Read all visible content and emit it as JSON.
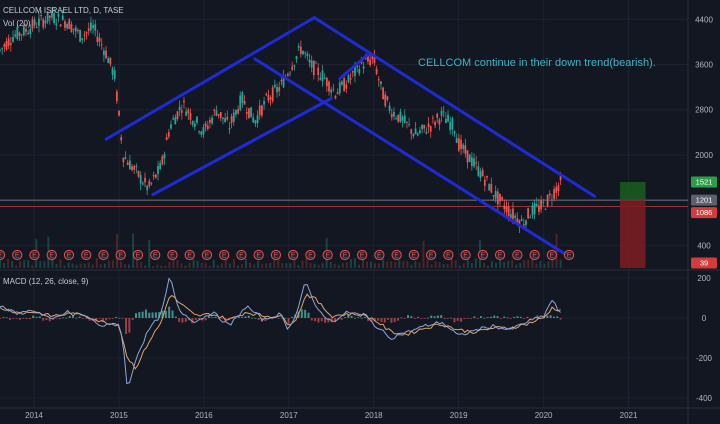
{
  "header": {
    "symbol_line": "CELLCOM ISRAEL LTD, D, TASE",
    "volume_label": "Vol (20)",
    "macd_label": "MACD (12, 26, close, 9)"
  },
  "annotation": "CELLCOM continue in their down trend(bearish).",
  "colors": {
    "background": "#131722",
    "up": "#26a69a",
    "down": "#ef5350",
    "channel": "#1f2bd6",
    "annotation": "#3fb3c6",
    "macd_line": "#8fa6d8",
    "signal_line": "#e0a46c"
  },
  "chart_data": [
    {
      "type": "line",
      "name": "price",
      "x_ticks": [
        "2014",
        "2015",
        "2016",
        "2017",
        "2018",
        "2019",
        "2020",
        "2021"
      ],
      "y_ticks": [
        400,
        1200,
        2000,
        2800,
        3600,
        4400
      ],
      "ylim": [
        0,
        4600
      ],
      "xlim": [
        2013.6,
        2021.7
      ],
      "series": [
        {
          "x": [
            2013.6,
            2013.75,
            2013.9,
            2014.0,
            2014.2,
            2014.4,
            2014.55,
            2014.7,
            2014.85,
            2014.95,
            2015.05,
            2015.2,
            2015.35,
            2015.5,
            2015.6,
            2015.75,
            2015.85,
            2016.0,
            2016.15,
            2016.3,
            2016.45,
            2016.6,
            2016.75,
            2016.9,
            2017.0,
            2017.15,
            2017.25,
            2017.4,
            2017.55,
            2017.7,
            2017.85,
            2018.0,
            2018.1,
            2018.2,
            2018.35,
            2018.5,
            2018.65,
            2018.8,
            2018.95,
            2019.0,
            2019.15,
            2019.3,
            2019.45,
            2019.6,
            2019.75,
            2019.85,
            2020.0,
            2020.1,
            2020.2
          ],
          "values": [
            3850,
            4100,
            4200,
            4300,
            4450,
            4350,
            4100,
            4250,
            3800,
            3400,
            2000,
            1700,
            1400,
            1800,
            2500,
            2900,
            2700,
            2400,
            2800,
            2500,
            3000,
            2600,
            3000,
            3200,
            3500,
            3900,
            3600,
            3400,
            3100,
            3300,
            3600,
            3700,
            3100,
            2800,
            2600,
            2350,
            2500,
            2700,
            2500,
            2200,
            1900,
            1600,
            1250,
            1000,
            800,
            1000,
            1100,
            1300,
            1521
          ]
        }
      ],
      "price_labels": [
        "1521",
        "1201",
        "1086",
        "39"
      ],
      "events_label": "E",
      "events_count": 34
    },
    {
      "type": "line",
      "name": "macd",
      "y_ticks": [
        200,
        0,
        -200,
        -400
      ],
      "ylim": [
        -420,
        230
      ],
      "series": [
        {
          "name": "MACD",
          "x": [
            2013.6,
            2013.8,
            2014.0,
            2014.2,
            2014.4,
            2014.6,
            2014.8,
            2015.0,
            2015.05,
            2015.1,
            2015.2,
            2015.35,
            2015.5,
            2015.6,
            2015.7,
            2015.9,
            2016.1,
            2016.3,
            2016.5,
            2016.7,
            2016.9,
            2017.0,
            2017.1,
            2017.2,
            2017.3,
            2017.5,
            2017.7,
            2017.9,
            2018.05,
            2018.2,
            2018.4,
            2018.6,
            2018.8,
            2019.0,
            2019.2,
            2019.4,
            2019.6,
            2019.8,
            2020.0,
            2020.1,
            2020.2
          ],
          "values": [
            60,
            20,
            40,
            -10,
            30,
            10,
            -40,
            -30,
            -120,
            -370,
            -200,
            -60,
            20,
            210,
            40,
            -20,
            30,
            -40,
            60,
            -10,
            20,
            -60,
            40,
            190,
            60,
            -20,
            30,
            10,
            -50,
            -100,
            -70,
            -40,
            -20,
            -90,
            -60,
            -40,
            -60,
            -20,
            10,
            90,
            20
          ]
        },
        {
          "name": "Signal",
          "x": [
            2013.6,
            2013.8,
            2014.0,
            2014.2,
            2014.4,
            2014.6,
            2014.8,
            2015.0,
            2015.1,
            2015.2,
            2015.35,
            2015.5,
            2015.6,
            2015.7,
            2015.9,
            2016.1,
            2016.3,
            2016.5,
            2016.7,
            2016.9,
            2017.0,
            2017.1,
            2017.2,
            2017.3,
            2017.5,
            2017.7,
            2017.9,
            2018.05,
            2018.2,
            2018.4,
            2018.6,
            2018.8,
            2019.0,
            2019.2,
            2019.4,
            2019.6,
            2019.8,
            2020.0,
            2020.1,
            2020.2
          ],
          "values": [
            50,
            30,
            30,
            10,
            20,
            15,
            -20,
            -30,
            -200,
            -250,
            -120,
            -20,
            120,
            80,
            10,
            20,
            -10,
            30,
            10,
            10,
            -30,
            0,
            120,
            100,
            10,
            20,
            15,
            -20,
            -70,
            -80,
            -50,
            -30,
            -60,
            -70,
            -50,
            -50,
            -30,
            0,
            50,
            40
          ]
        }
      ]
    }
  ]
}
